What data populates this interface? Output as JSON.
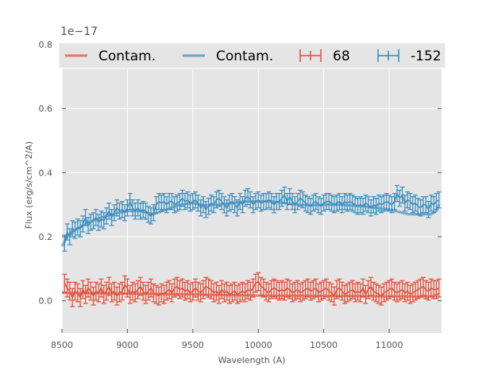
{
  "chart_data": {
    "type": "line",
    "title": "",
    "xlabel": "Wavelength (A)",
    "ylabel": "Flux (erg/s/cm^2/A)",
    "offset_text": "1e−17",
    "xlim": [
      8500,
      11400
    ],
    "ylim": [
      -0.1,
      0.8
    ],
    "xticks": [
      8500,
      9000,
      9500,
      10000,
      10500,
      11000
    ],
    "yticks": [
      0.0,
      0.2,
      0.4,
      0.6,
      0.8
    ],
    "ytick_labels": [
      "0.0",
      "0.2",
      "0.4",
      "0.6",
      "0.8"
    ],
    "grid": true,
    "legend_position": "top",
    "colors": {
      "red": "#e24a33",
      "blue": "#348abd",
      "background": "#e5e5e5",
      "grid": "#ffffff"
    },
    "contamination": [
      {
        "name": "Contam.",
        "color": "#e24a33",
        "x": [
          8500,
          8700,
          8900,
          9100,
          9300,
          9500,
          9700,
          9900,
          10100,
          10300,
          10500,
          10700,
          10900,
          11100,
          11250,
          11340,
          11380
        ],
        "y": [
          0.025,
          0.024,
          0.023,
          0.022,
          0.021,
          0.02,
          0.018,
          0.017,
          0.016,
          0.016,
          0.015,
          0.015,
          0.014,
          0.014,
          0.013,
          0.015,
          0.022
        ]
      },
      {
        "name": "Contam.",
        "color": "#348abd",
        "x": [
          8500,
          8540,
          8600,
          8700,
          8800,
          8900,
          9000,
          9100,
          9200,
          9300,
          9400,
          9500,
          9600,
          9700,
          9800,
          9900,
          10000,
          10100,
          10200,
          10300,
          10400,
          10500,
          10600,
          10700,
          10800,
          10900,
          11000,
          11100,
          11150,
          11250,
          11320,
          11360,
          11380
        ],
        "y": [
          0.17,
          0.2,
          0.22,
          0.245,
          0.26,
          0.272,
          0.28,
          0.28,
          0.27,
          0.285,
          0.3,
          0.305,
          0.298,
          0.3,
          0.305,
          0.31,
          0.31,
          0.31,
          0.305,
          0.3,
          0.298,
          0.3,
          0.3,
          0.298,
          0.295,
          0.29,
          0.285,
          0.275,
          0.27,
          0.27,
          0.27,
          0.28,
          0.3
        ]
      }
    ],
    "series": [
      {
        "name": "68",
        "color": "#e24a33",
        "x": [
          8520,
          8540,
          8560,
          8580,
          8600,
          8620,
          8640,
          8660,
          8680,
          8700,
          8720,
          8740,
          8760,
          8780,
          8800,
          8820,
          8840,
          8860,
          8880,
          8900,
          8920,
          8940,
          8960,
          8980,
          9000,
          9020,
          9040,
          9060,
          9080,
          9100,
          9120,
          9140,
          9160,
          9180,
          9200,
          9220,
          9240,
          9260,
          9280,
          9300,
          9320,
          9340,
          9360,
          9380,
          9400,
          9420,
          9440,
          9460,
          9480,
          9500,
          9520,
          9540,
          9560,
          9580,
          9600,
          9620,
          9640,
          9660,
          9680,
          9700,
          9720,
          9740,
          9760,
          9780,
          9800,
          9820,
          9840,
          9860,
          9880,
          9900,
          9920,
          9940,
          9960,
          9980,
          10000,
          10020,
          10040,
          10060,
          10080,
          10100,
          10120,
          10140,
          10160,
          10180,
          10200,
          10220,
          10240,
          10260,
          10280,
          10300,
          10320,
          10340,
          10360,
          10380,
          10400,
          10420,
          10440,
          10460,
          10480,
          10500,
          10520,
          10540,
          10560,
          10580,
          10600,
          10620,
          10640,
          10660,
          10680,
          10700,
          10720,
          10740,
          10760,
          10780,
          10800,
          10820,
          10840,
          10860,
          10880,
          10900,
          10920,
          10940,
          10960,
          10980,
          11000,
          11020,
          11040,
          11060,
          11080,
          11100,
          11120,
          11140,
          11160,
          11180,
          11200,
          11220,
          11240,
          11260,
          11280,
          11300,
          11320,
          11340,
          11360,
          11380
        ],
        "y": [
          0.055,
          0.04,
          0.03,
          0.01,
          0.03,
          0.025,
          0.01,
          0.035,
          0.02,
          0.04,
          0.03,
          0.015,
          0.03,
          0.025,
          0.04,
          0.02,
          0.03,
          0.045,
          0.025,
          0.03,
          0.015,
          0.025,
          0.03,
          0.05,
          0.04,
          0.02,
          0.03,
          0.025,
          0.035,
          0.045,
          0.03,
          0.02,
          0.03,
          0.04,
          0.025,
          0.02,
          0.015,
          0.025,
          0.02,
          0.03,
          0.035,
          0.025,
          0.04,
          0.045,
          0.035,
          0.04,
          0.03,
          0.035,
          0.025,
          0.03,
          0.04,
          0.03,
          0.025,
          0.035,
          0.045,
          0.04,
          0.035,
          0.025,
          0.03,
          0.02,
          0.035,
          0.025,
          0.03,
          0.02,
          0.025,
          0.03,
          0.02,
          0.025,
          0.03,
          0.025,
          0.035,
          0.03,
          0.04,
          0.055,
          0.06,
          0.045,
          0.04,
          0.03,
          0.025,
          0.035,
          0.04,
          0.035,
          0.03,
          0.035,
          0.03,
          0.04,
          0.035,
          0.025,
          0.03,
          0.035,
          0.025,
          0.03,
          0.035,
          0.04,
          0.03,
          0.035,
          0.04,
          0.025,
          0.03,
          0.035,
          0.04,
          0.03,
          0.025,
          0.015,
          0.035,
          0.04,
          0.03,
          0.02,
          0.025,
          0.03,
          0.035,
          0.025,
          0.03,
          0.025,
          0.04,
          0.02,
          0.035,
          0.045,
          0.03,
          0.025,
          0.02,
          0.015,
          0.025,
          0.03,
          0.035,
          0.04,
          0.03,
          0.025,
          0.03,
          0.035,
          0.025,
          0.03,
          0.02,
          0.025,
          0.03,
          0.035,
          0.04,
          0.045,
          0.035,
          0.03,
          0.04,
          0.035,
          0.035,
          0.04
        ],
        "err": 0.028
      },
      {
        "name": "-152",
        "color": "#348abd",
        "x": [
          8520,
          8540,
          8560,
          8580,
          8600,
          8620,
          8640,
          8660,
          8680,
          8700,
          8720,
          8740,
          8760,
          8780,
          8800,
          8820,
          8840,
          8860,
          8880,
          8900,
          8920,
          8940,
          8960,
          8980,
          9000,
          9020,
          9040,
          9060,
          9080,
          9100,
          9120,
          9140,
          9160,
          9180,
          9200,
          9220,
          9240,
          9260,
          9280,
          9300,
          9320,
          9340,
          9360,
          9380,
          9400,
          9420,
          9440,
          9460,
          9480,
          9500,
          9520,
          9540,
          9560,
          9580,
          9600,
          9620,
          9640,
          9660,
          9680,
          9700,
          9720,
          9740,
          9760,
          9780,
          9800,
          9820,
          9840,
          9860,
          9880,
          9900,
          9920,
          9940,
          9960,
          9980,
          10000,
          10020,
          10040,
          10060,
          10080,
          10100,
          10120,
          10140,
          10160,
          10180,
          10200,
          10220,
          10240,
          10260,
          10280,
          10300,
          10320,
          10340,
          10360,
          10380,
          10400,
          10420,
          10440,
          10460,
          10480,
          10500,
          10520,
          10540,
          10560,
          10580,
          10600,
          10620,
          10640,
          10660,
          10680,
          10700,
          10720,
          10740,
          10760,
          10780,
          10800,
          10820,
          10840,
          10860,
          10880,
          10900,
          10920,
          10940,
          10960,
          10980,
          11000,
          11020,
          11040,
          11060,
          11080,
          11100,
          11120,
          11140,
          11160,
          11180,
          11200,
          11220,
          11240,
          11260,
          11280,
          11300,
          11320,
          11340,
          11360,
          11380
        ],
        "y": [
          0.18,
          0.215,
          0.2,
          0.225,
          0.22,
          0.23,
          0.225,
          0.24,
          0.26,
          0.235,
          0.245,
          0.25,
          0.26,
          0.245,
          0.255,
          0.25,
          0.265,
          0.28,
          0.26,
          0.275,
          0.29,
          0.28,
          0.285,
          0.275,
          0.29,
          0.31,
          0.29,
          0.28,
          0.29,
          0.28,
          0.285,
          0.28,
          0.27,
          0.265,
          0.275,
          0.3,
          0.31,
          0.305,
          0.31,
          0.3,
          0.31,
          0.31,
          0.3,
          0.305,
          0.31,
          0.32,
          0.31,
          0.315,
          0.305,
          0.31,
          0.315,
          0.305,
          0.29,
          0.3,
          0.285,
          0.295,
          0.305,
          0.3,
          0.315,
          0.32,
          0.31,
          0.3,
          0.29,
          0.305,
          0.31,
          0.3,
          0.29,
          0.31,
          0.3,
          0.32,
          0.325,
          0.315,
          0.3,
          0.31,
          0.315,
          0.305,
          0.31,
          0.31,
          0.315,
          0.31,
          0.3,
          0.31,
          0.31,
          0.32,
          0.33,
          0.31,
          0.325,
          0.31,
          0.3,
          0.31,
          0.32,
          0.315,
          0.305,
          0.3,
          0.295,
          0.305,
          0.31,
          0.3,
          0.295,
          0.305,
          0.31,
          0.31,
          0.305,
          0.3,
          0.305,
          0.31,
          0.3,
          0.31,
          0.305,
          0.31,
          0.305,
          0.3,
          0.295,
          0.3,
          0.295,
          0.305,
          0.3,
          0.29,
          0.3,
          0.295,
          0.305,
          0.3,
          0.305,
          0.31,
          0.305,
          0.3,
          0.31,
          0.335,
          0.32,
          0.33,
          0.305,
          0.315,
          0.31,
          0.3,
          0.305,
          0.295,
          0.29,
          0.3,
          0.3,
          0.285,
          0.305,
          0.3,
          0.31,
          0.315
        ],
        "err": 0.025
      }
    ]
  }
}
